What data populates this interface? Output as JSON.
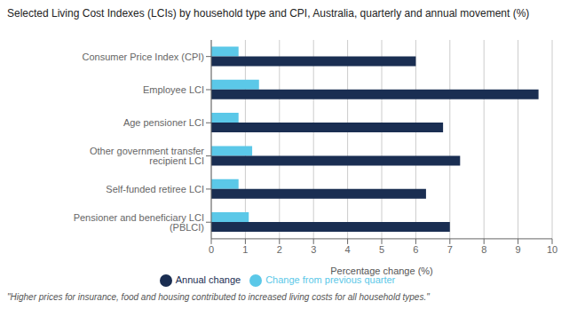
{
  "chart_data": {
    "type": "bar",
    "orientation": "horizontal",
    "title": "Selected Living Cost Indexes (LCIs) by household type and CPI, Australia, quarterly and annual movement (%)",
    "categories": [
      "Consumer Price Index (CPI)",
      "Employee LCI",
      "Age pensioner LCI",
      "Other government transfer recipient LCI",
      "Self-funded retiree LCI",
      "Pensioner and beneficiary LCI (PBLCI)"
    ],
    "series": [
      {
        "name": "Change from previous quarter",
        "color": "#5bc8e8",
        "values": [
          0.8,
          1.4,
          0.8,
          1.2,
          0.8,
          1.1
        ]
      },
      {
        "name": "Annual change",
        "color": "#1a2e52",
        "values": [
          6.0,
          9.6,
          6.8,
          7.3,
          6.3,
          7.0
        ]
      }
    ],
    "xlabel": "Percentage change (%)",
    "xlim": [
      0,
      10
    ],
    "xticks": [
      0,
      1,
      2,
      3,
      4,
      5,
      6,
      7,
      8,
      9,
      10
    ],
    "grid": true,
    "legend": "bottom",
    "footnote": "\"Higher prices for insurance, food and housing contributed to increased living costs for all household types.\""
  }
}
